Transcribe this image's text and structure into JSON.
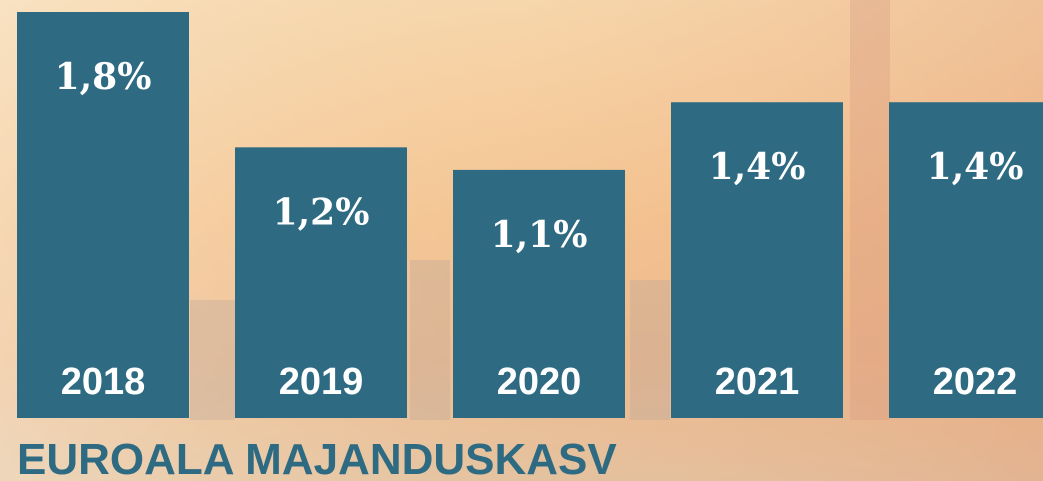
{
  "chart_data": {
    "type": "bar",
    "title": "EUROALA MAJANDUSKASV",
    "categories": [
      "2018",
      "2019",
      "2020",
      "2021",
      "2022"
    ],
    "values": [
      1.8,
      1.2,
      1.1,
      1.4,
      1.4
    ],
    "value_labels": [
      "1,8%",
      "1,2%",
      "1,1%",
      "1,4%",
      "1,4%"
    ],
    "color": "#2e6b82"
  }
}
